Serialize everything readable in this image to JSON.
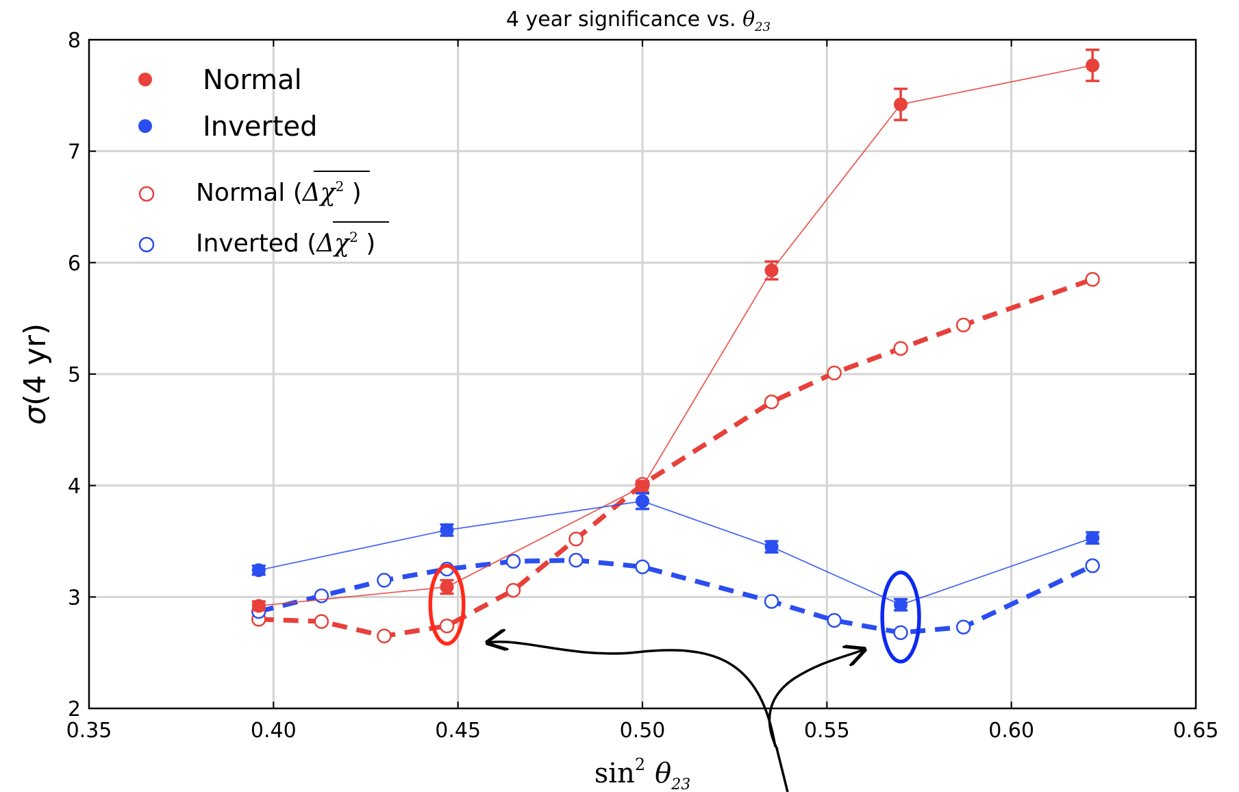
{
  "chart_data": {
    "type": "scatter",
    "title": "4 year significance vs. θ₂₃",
    "title_parts": {
      "main": "4 year significance vs. ",
      "symbol": "θ",
      "sub": "23"
    },
    "xlabel": "sin² θ₂₃",
    "xlabel_parts": {
      "fn": "sin",
      "sup": "2",
      "symbol": "θ",
      "sub": "23"
    },
    "ylabel": "σ(4 yr)",
    "ylabel_parts": {
      "symbol": "σ",
      "rest": "(4 yr)"
    },
    "xlim": [
      0.35,
      0.65
    ],
    "ylim": [
      2,
      8
    ],
    "xticks": [
      0.35,
      0.4,
      0.45,
      0.5,
      0.55,
      0.6,
      0.65
    ],
    "xtick_labels": [
      "0.35",
      "0.40",
      "0.45",
      "0.50",
      "0.55",
      "0.60",
      "0.65"
    ],
    "yticks": [
      2,
      3,
      4,
      5,
      6,
      7,
      8
    ],
    "ytick_labels": [
      "2",
      "3",
      "4",
      "5",
      "6",
      "7",
      "8"
    ],
    "grid": true,
    "legend_position": "top-left",
    "colors": {
      "normal": "#e8403a",
      "inverted": "#2a4ef0"
    },
    "series": [
      {
        "name": "Normal",
        "style": "filled-errorbar-thin-line",
        "color": "#e8403a",
        "x": [
          0.396,
          0.447,
          0.5,
          0.535,
          0.57,
          0.622
        ],
        "y": [
          2.92,
          3.09,
          3.99,
          5.93,
          7.42,
          7.77
        ],
        "err": [
          0.04,
          0.06,
          0.05,
          0.08,
          0.14,
          0.14
        ]
      },
      {
        "name": "Inverted",
        "style": "filled-errorbar-thin-line",
        "color": "#2a4ef0",
        "x": [
          0.396,
          0.447,
          0.5,
          0.535,
          0.57,
          0.622
        ],
        "y": [
          3.24,
          3.6,
          3.86,
          3.45,
          2.93,
          3.53
        ],
        "err": [
          0.04,
          0.05,
          0.07,
          0.05,
          0.05,
          0.05
        ]
      },
      {
        "name": "Normal (Δχ²)",
        "name_parts": {
          "pre": "Normal (",
          "expr": "Δχ",
          "sup": "2",
          "post": " )"
        },
        "style": "open-dashed",
        "color": "#e8403a",
        "x": [
          0.396,
          0.413,
          0.43,
          0.447,
          0.465,
          0.482,
          0.5,
          0.535,
          0.552,
          0.57,
          0.587,
          0.622
        ],
        "y": [
          2.8,
          2.78,
          2.65,
          2.74,
          3.06,
          3.52,
          4.01,
          4.75,
          5.01,
          5.23,
          5.44,
          5.85
        ]
      },
      {
        "name": "Inverted (Δχ²)",
        "name_parts": {
          "pre": "Inverted (",
          "expr": "Δχ",
          "sup": "2",
          "post": " )"
        },
        "style": "open-dashed",
        "color": "#2a4ef0",
        "x": [
          0.396,
          0.413,
          0.43,
          0.447,
          0.465,
          0.482,
          0.5,
          0.535,
          0.552,
          0.57,
          0.587,
          0.622
        ],
        "y": [
          2.87,
          3.01,
          3.15,
          3.25,
          3.32,
          3.33,
          3.27,
          2.96,
          2.79,
          2.68,
          2.73,
          3.28
        ]
      }
    ],
    "annotations": [
      {
        "type": "ellipse",
        "x": 0.447,
        "y": 2.93,
        "dx": 0.0045,
        "dy": 0.35,
        "color": "#ff2a1a"
      },
      {
        "type": "ellipse",
        "x": 0.57,
        "y": 2.82,
        "dx": 0.005,
        "dy": 0.4,
        "color": "#0d2af0"
      }
    ]
  }
}
